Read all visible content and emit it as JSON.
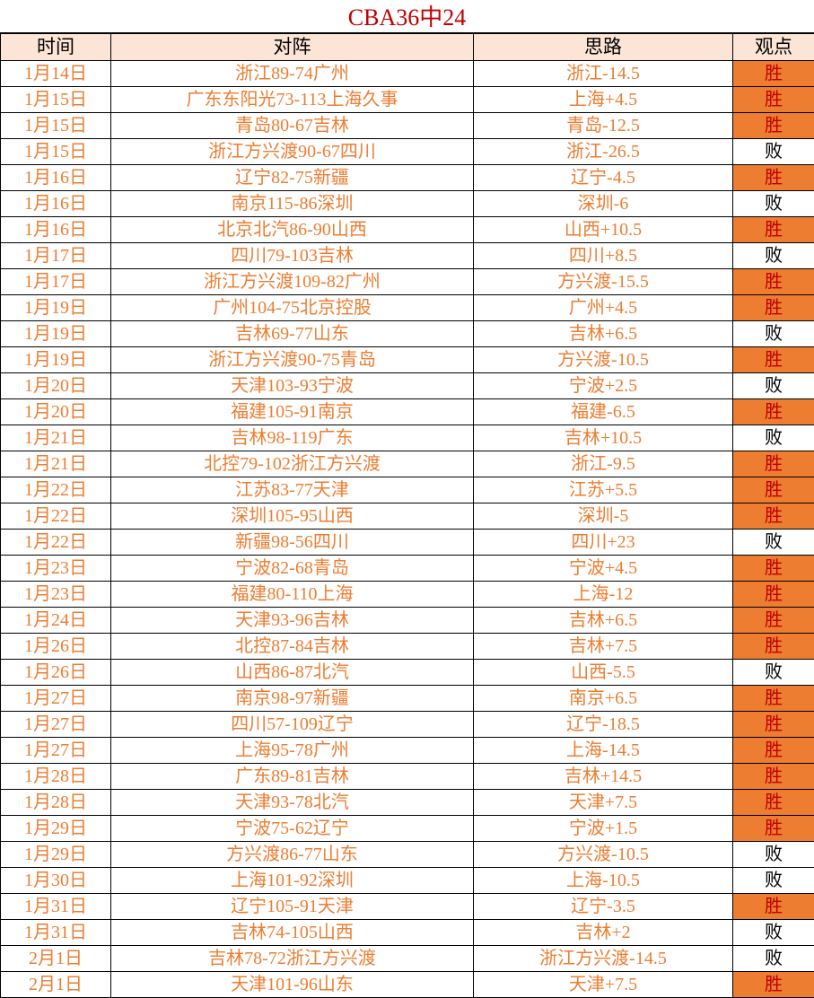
{
  "title": "CBA36中24",
  "headers": [
    "时间",
    "对阵",
    "思路",
    "观点"
  ],
  "colors": {
    "text": "#ED7D31",
    "header_bg": "#FCE4D6",
    "win_bg": "#ED7D31",
    "win_text": "#C00000",
    "title": "#C00000"
  },
  "rows": [
    {
      "date": "1月14日",
      "match": "浙江89-74广州",
      "pick": "浙江-14.5",
      "result": "胜"
    },
    {
      "date": "1月15日",
      "match": "广东东阳光73-113上海久事",
      "pick": "上海+4.5",
      "result": "胜"
    },
    {
      "date": "1月15日",
      "match": "青岛80-67吉林",
      "pick": "青岛-12.5",
      "result": "胜"
    },
    {
      "date": "1月15日",
      "match": "浙江方兴渡90-67四川",
      "pick": "浙江-26.5",
      "result": "败"
    },
    {
      "date": "1月16日",
      "match": "辽宁82-75新疆",
      "pick": "辽宁-4.5",
      "result": "胜"
    },
    {
      "date": "1月16日",
      "match": "南京115-86深圳",
      "pick": "深圳-6",
      "result": "败"
    },
    {
      "date": "1月16日",
      "match": "北京北汽86-90山西",
      "pick": "山西+10.5",
      "result": "胜"
    },
    {
      "date": "1月17日",
      "match": "四川79-103吉林",
      "pick": "四川+8.5",
      "result": "败"
    },
    {
      "date": "1月17日",
      "match": "浙江方兴渡109-82广州",
      "pick": "方兴渡-15.5",
      "result": "胜"
    },
    {
      "date": "1月19日",
      "match": "广州104-75北京控股",
      "pick": "广州+4.5",
      "result": "胜"
    },
    {
      "date": "1月19日",
      "match": "吉林69-77山东",
      "pick": "吉林+6.5",
      "result": "败"
    },
    {
      "date": "1月19日",
      "match": "浙江方兴渡90-75青岛",
      "pick": "方兴渡-10.5",
      "result": "胜"
    },
    {
      "date": "1月20日",
      "match": "天津103-93宁波",
      "pick": "宁波+2.5",
      "result": "败"
    },
    {
      "date": "1月20日",
      "match": "福建105-91南京",
      "pick": "福建-6.5",
      "result": "胜"
    },
    {
      "date": "1月21日",
      "match": "吉林98-119广东",
      "pick": "吉林+10.5",
      "result": "败"
    },
    {
      "date": "1月21日",
      "match": "北控79-102浙江方兴渡",
      "pick": "浙江-9.5",
      "result": "胜"
    },
    {
      "date": "1月22日",
      "match": "江苏83-77天津",
      "pick": "江苏+5.5",
      "result": "胜"
    },
    {
      "date": "1月22日",
      "match": "深圳105-95山西",
      "pick": "深圳-5",
      "result": "胜"
    },
    {
      "date": "1月22日",
      "match": "新疆98-56四川",
      "pick": "四川+23",
      "result": "败"
    },
    {
      "date": "1月23日",
      "match": "宁波82-68青岛",
      "pick": "宁波+4.5",
      "result": "胜"
    },
    {
      "date": "1月23日",
      "match": "福建80-110上海",
      "pick": "上海-12",
      "result": "胜"
    },
    {
      "date": "1月24日",
      "match": "天津93-96吉林",
      "pick": "吉林+6.5",
      "result": "胜"
    },
    {
      "date": "1月26日",
      "match": "北控87-84吉林",
      "pick": "吉林+7.5",
      "result": "胜"
    },
    {
      "date": "1月26日",
      "match": "山西86-87北汽",
      "pick": "山西-5.5",
      "result": "败"
    },
    {
      "date": "1月27日",
      "match": "南京98-97新疆",
      "pick": "南京+6.5",
      "result": "胜"
    },
    {
      "date": "1月27日",
      "match": "四川57-109辽宁",
      "pick": "辽宁-18.5",
      "result": "胜"
    },
    {
      "date": "1月27日",
      "match": "上海95-78广州",
      "pick": "上海-14.5",
      "result": "胜"
    },
    {
      "date": "1月28日",
      "match": "广东89-81吉林",
      "pick": "吉林+14.5",
      "result": "胜"
    },
    {
      "date": "1月28日",
      "match": "天津93-78北汽",
      "pick": "天津+7.5",
      "result": "胜"
    },
    {
      "date": "1月29日",
      "match": "宁波75-62辽宁",
      "pick": "宁波+1.5",
      "result": "胜"
    },
    {
      "date": "1月29日",
      "match": "方兴渡86-77山东",
      "pick": "方兴渡-10.5",
      "result": "败"
    },
    {
      "date": "1月30日",
      "match": "上海101-92深圳",
      "pick": "上海-10.5",
      "result": "败"
    },
    {
      "date": "1月31日",
      "match": "辽宁105-91天津",
      "pick": "辽宁-3.5",
      "result": "胜"
    },
    {
      "date": "1月31日",
      "match": "吉林74-105山西",
      "pick": "吉林+2",
      "result": "败"
    },
    {
      "date": "2月1日",
      "match": "吉林78-72浙江方兴渡",
      "pick": "浙江方兴渡-14.5",
      "result": "败"
    },
    {
      "date": "2月1日",
      "match": "天津101-96山东",
      "pick": "天津+7.5",
      "result": "胜"
    }
  ]
}
